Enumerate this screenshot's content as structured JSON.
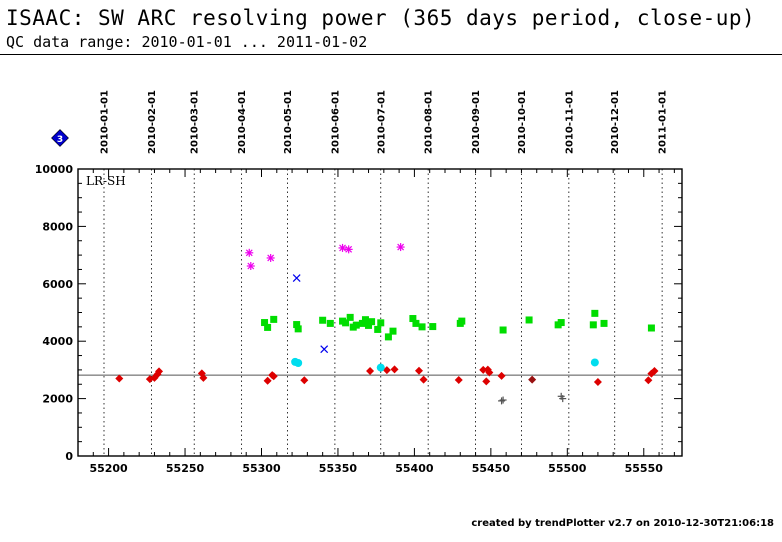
{
  "header": {
    "title": "ISAAC: SW ARC resolving power (365 days period, close-up)",
    "subtitle": "QC data range: 2010-01-01 ... 2011-01-02"
  },
  "footer": {
    "text": "created by trendPlotter v2.7 on 2010-12-30T21:06:18"
  },
  "chart_data": {
    "type": "scatter",
    "panel_label": "LR-SH",
    "badge_label": "3",
    "xlim": [
      55180,
      55575
    ],
    "ylim": [
      0,
      10000
    ],
    "x_ticks": [
      55200,
      55250,
      55300,
      55350,
      55400,
      55450,
      55500,
      55550
    ],
    "y_ticks": [
      0,
      2000,
      4000,
      6000,
      8000,
      10000
    ],
    "date_ticks": [
      {
        "label": "2010-01-01",
        "mjd": 55197
      },
      {
        "label": "2010-02-01",
        "mjd": 55228
      },
      {
        "label": "2010-03-01",
        "mjd": 55256
      },
      {
        "label": "2010-04-01",
        "mjd": 55287
      },
      {
        "label": "2010-05-01",
        "mjd": 55317
      },
      {
        "label": "2010-06-01",
        "mjd": 55348
      },
      {
        "label": "2010-07-01",
        "mjd": 55378
      },
      {
        "label": "2010-08-01",
        "mjd": 55409
      },
      {
        "label": "2010-09-01",
        "mjd": 55440
      },
      {
        "label": "2010-10-01",
        "mjd": 55470
      },
      {
        "label": "2010-11-01",
        "mjd": 55501
      },
      {
        "label": "2010-12-01",
        "mjd": 55531
      },
      {
        "label": "2011-01-01",
        "mjd": 55562
      }
    ],
    "reference_line": 2820,
    "grid": "vertical dotted at month starts",
    "colors": {
      "red": "#dd0000",
      "darkred": "#991111",
      "green": "#00dd00",
      "magenta": "#ee00ee",
      "blue": "#0000ee",
      "cyan": "#00ddee",
      "gray": "#555555",
      "badge": "#0000cc"
    },
    "series": [
      {
        "marker": "diamond",
        "color": "red",
        "points": [
          [
            55207,
            2700
          ],
          [
            55227,
            2680
          ],
          [
            55230,
            2720
          ],
          [
            55232,
            2850
          ],
          [
            55233,
            2950
          ],
          [
            55261,
            2880
          ],
          [
            55262,
            2720
          ],
          [
            55304,
            2620
          ],
          [
            55307,
            2820
          ],
          [
            55308,
            2780
          ],
          [
            55328,
            2640
          ],
          [
            55371,
            2960
          ],
          [
            55382,
            2990
          ],
          [
            55387,
            3020
          ],
          [
            55403,
            2970
          ],
          [
            55406,
            2660
          ],
          [
            55429,
            2650
          ],
          [
            55445,
            3000
          ],
          [
            55447,
            2600
          ],
          [
            55448,
            3010
          ],
          [
            55449,
            2910
          ],
          [
            55457,
            2790
          ],
          [
            55520,
            2580
          ],
          [
            55553,
            2640
          ],
          [
            55555,
            2870
          ],
          [
            55557,
            2960
          ]
        ]
      },
      {
        "marker": "diamond",
        "color": "darkred",
        "points": [
          [
            55477,
            2660
          ]
        ]
      },
      {
        "marker": "square",
        "color": "green",
        "points": [
          [
            55302,
            4650
          ],
          [
            55304,
            4480
          ],
          [
            55308,
            4760
          ],
          [
            55323,
            4580
          ],
          [
            55324,
            4430
          ],
          [
            55340,
            4730
          ],
          [
            55345,
            4620
          ],
          [
            55353,
            4700
          ],
          [
            55355,
            4640
          ],
          [
            55358,
            4830
          ],
          [
            55360,
            4490
          ],
          [
            55362,
            4560
          ],
          [
            55366,
            4620
          ],
          [
            55368,
            4750
          ],
          [
            55370,
            4550
          ],
          [
            55372,
            4680
          ],
          [
            55376,
            4410
          ],
          [
            55378,
            4640
          ],
          [
            55383,
            4150
          ],
          [
            55386,
            4350
          ],
          [
            55399,
            4790
          ],
          [
            55401,
            4620
          ],
          [
            55405,
            4500
          ],
          [
            55412,
            4510
          ],
          [
            55430,
            4620
          ],
          [
            55431,
            4700
          ],
          [
            55458,
            4390
          ],
          [
            55475,
            4740
          ],
          [
            55494,
            4570
          ],
          [
            55496,
            4650
          ],
          [
            55517,
            4570
          ],
          [
            55518,
            4970
          ],
          [
            55524,
            4620
          ],
          [
            55555,
            4460
          ]
        ]
      },
      {
        "marker": "asterisk",
        "color": "magenta",
        "points": [
          [
            55292,
            7080
          ],
          [
            55293,
            6620
          ],
          [
            55306,
            6900
          ],
          [
            55353,
            7250
          ],
          [
            55357,
            7200
          ],
          [
            55391,
            7280
          ]
        ]
      },
      {
        "marker": "cross",
        "color": "blue",
        "points": [
          [
            55323,
            6200
          ],
          [
            55341,
            3720
          ]
        ]
      },
      {
        "marker": "circle",
        "color": "cyan",
        "points": [
          [
            55322,
            3280
          ],
          [
            55324,
            3240
          ],
          [
            55378,
            3080
          ],
          [
            55518,
            3260
          ]
        ]
      },
      {
        "marker": "plus",
        "color": "gray",
        "points": [
          [
            55457,
            1920
          ],
          [
            55458,
            1950
          ],
          [
            55496,
            2080
          ],
          [
            55497,
            2000
          ]
        ]
      }
    ]
  }
}
